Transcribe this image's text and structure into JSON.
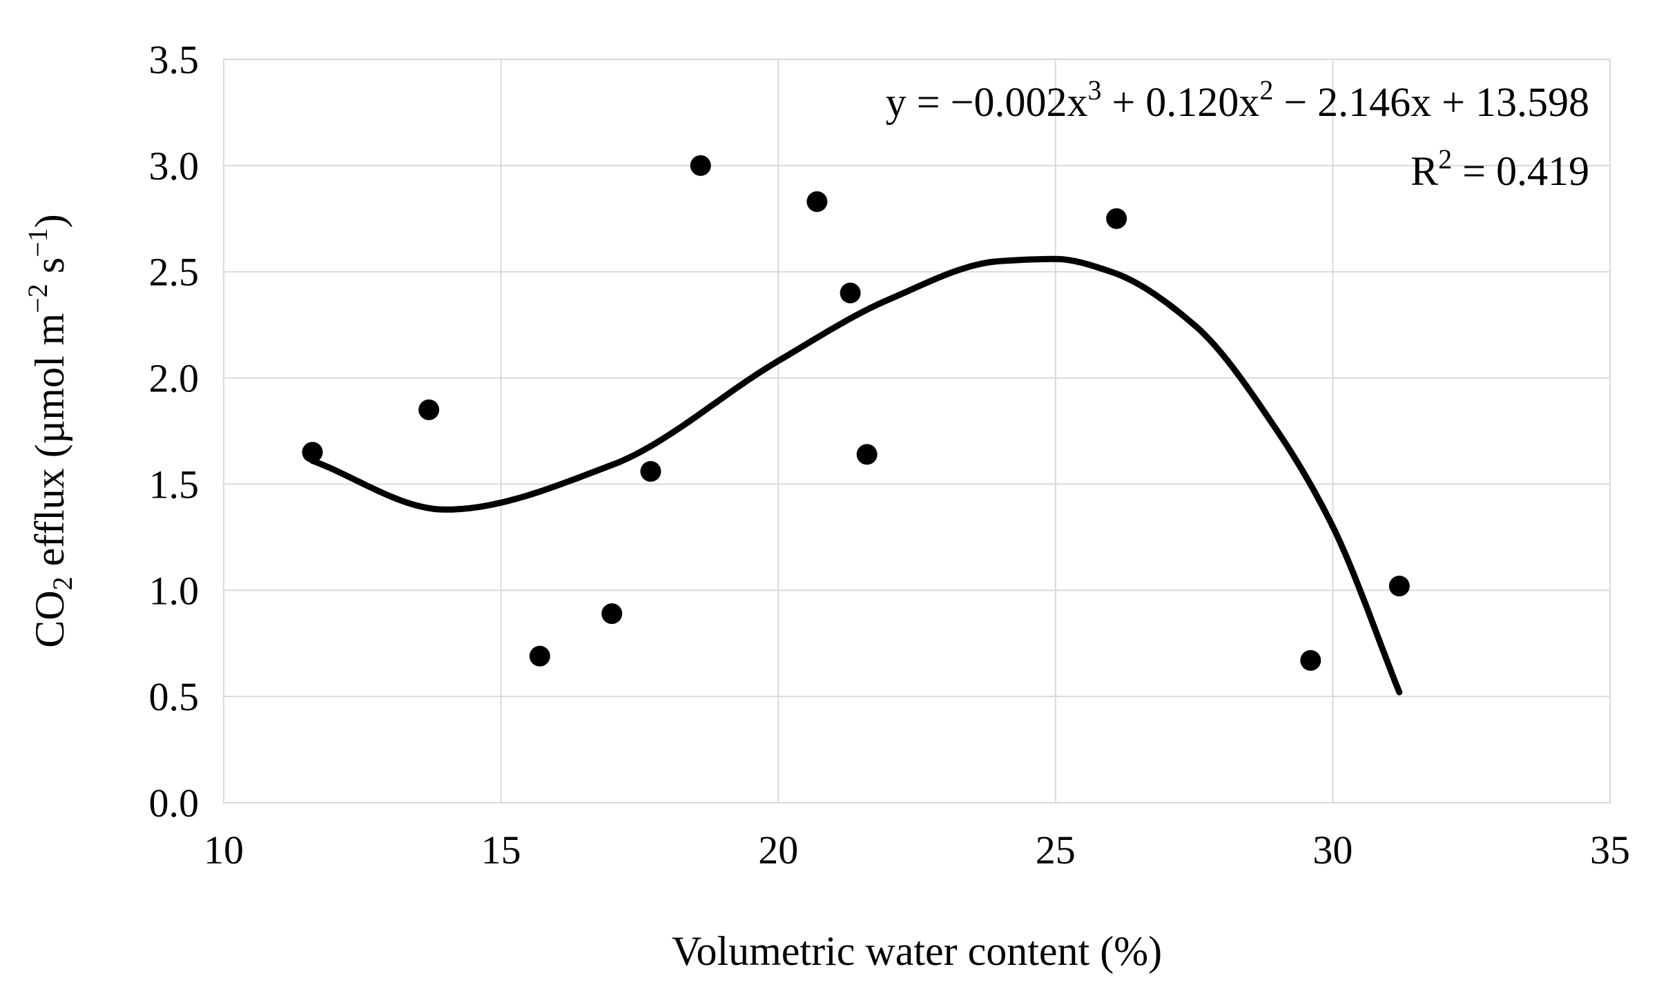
{
  "chart_data": {
    "type": "scatter",
    "title": "",
    "xlabel": "Volumetric water content (%)",
    "ylabel": {
      "prefix": "CO",
      "sub": "2",
      "mid": " efflux (µmol m",
      "sup1": "−2",
      "mid2": " s",
      "sup2": "−1",
      "suffix": ")"
    },
    "xlim": [
      10,
      35
    ],
    "ylim": [
      0,
      3.5
    ],
    "xticks": [
      10,
      15,
      20,
      25,
      30,
      35
    ],
    "yticks": [
      0,
      0.5,
      1,
      1.5,
      2,
      2.5,
      3,
      3.5
    ],
    "xtick_labels": [
      "10",
      "15",
      "20",
      "25",
      "30",
      "35"
    ],
    "ytick_labels": [
      "0.0",
      "0.5",
      "1.0",
      "1.5",
      "2.0",
      "2.5",
      "3.0",
      "3.5"
    ],
    "grid": true,
    "points": [
      {
        "x": 11.6,
        "y": 1.65
      },
      {
        "x": 13.7,
        "y": 1.85
      },
      {
        "x": 15.7,
        "y": 0.69
      },
      {
        "x": 17.0,
        "y": 0.89
      },
      {
        "x": 17.7,
        "y": 1.56
      },
      {
        "x": 18.6,
        "y": 3.0
      },
      {
        "x": 20.7,
        "y": 2.83
      },
      {
        "x": 21.3,
        "y": 2.4
      },
      {
        "x": 21.6,
        "y": 1.64
      },
      {
        "x": 26.1,
        "y": 2.75
      },
      {
        "x": 29.6,
        "y": 0.67
      },
      {
        "x": 31.2,
        "y": 1.02
      }
    ],
    "trendline": {
      "type": "polynomial",
      "order": 3,
      "x_range": [
        11.6,
        31.2
      ],
      "knots": [
        {
          "x": 11.6,
          "y": 1.61
        },
        {
          "x": 14.0,
          "y": 1.38
        },
        {
          "x": 17.0,
          "y": 1.59
        },
        {
          "x": 20.0,
          "y": 2.08
        },
        {
          "x": 22.0,
          "y": 2.37
        },
        {
          "x": 24.0,
          "y": 2.55
        },
        {
          "x": 25.0,
          "y": 2.56
        },
        {
          "x": 26.0,
          "y": 2.5
        },
        {
          "x": 27.5,
          "y": 2.25
        },
        {
          "x": 29.0,
          "y": 1.75
        },
        {
          "x": 30.0,
          "y": 1.3
        },
        {
          "x": 31.2,
          "y": 0.52
        }
      ]
    },
    "equation": {
      "line1": [
        {
          "t": "y = −0.002x",
          "s": "base"
        },
        {
          "t": "3",
          "s": "sup"
        },
        {
          "t": " + 0.120x",
          "s": "base"
        },
        {
          "t": "2",
          "s": "sup"
        },
        {
          "t": " − 2.146x + 13.598",
          "s": "base"
        }
      ],
      "line2": [
        {
          "t": "R",
          "s": "base"
        },
        {
          "t": "2",
          "s": "sup"
        },
        {
          "t": " = 0.419",
          "s": "base"
        }
      ]
    }
  }
}
